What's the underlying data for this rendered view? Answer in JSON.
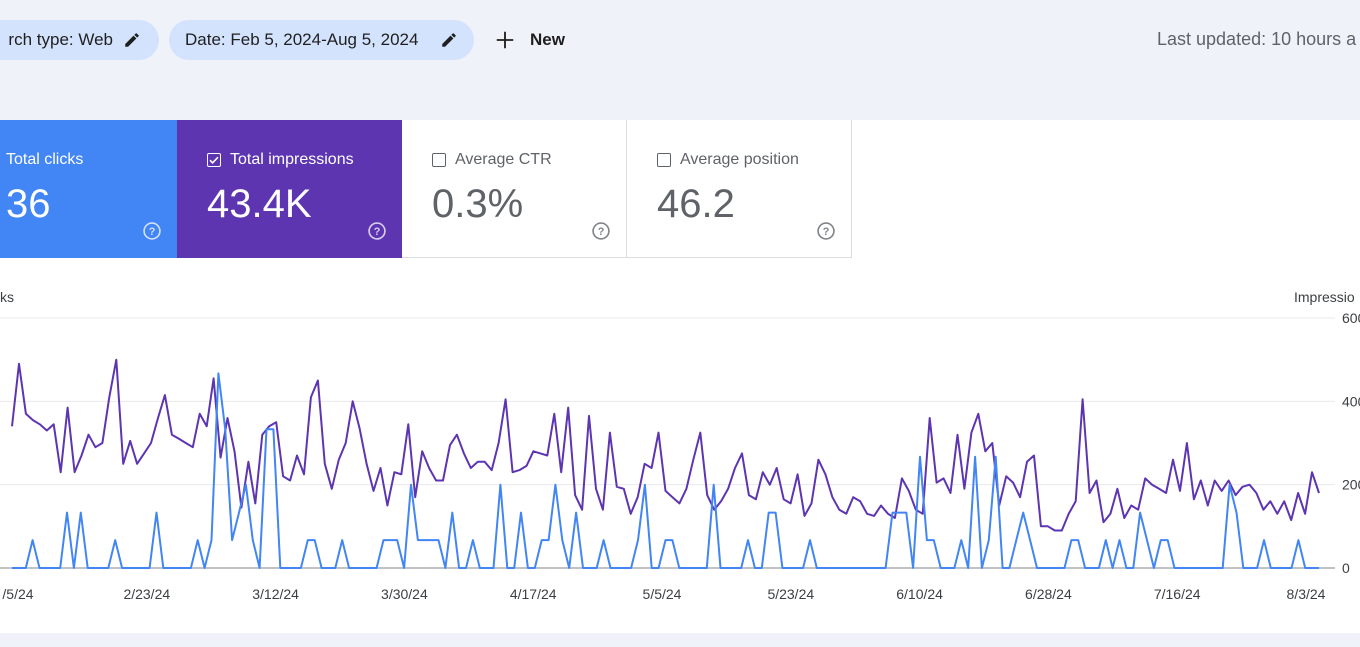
{
  "filters": {
    "search_type": "rch type: Web",
    "date": "Date: Feb 5, 2024-Aug 5, 2024",
    "new_label": "New",
    "last_updated": "Last updated: 10 hours a"
  },
  "metrics": {
    "clicks": {
      "label": "Total clicks",
      "value": "36",
      "selected": true,
      "color": "#4285f4"
    },
    "impressions": {
      "label": "Total impressions",
      "value": "43.4K",
      "selected": true,
      "color": "#5e35b1"
    },
    "ctr": {
      "label": "Average CTR",
      "value": "0.3%",
      "selected": false
    },
    "position": {
      "label": "Average position",
      "value": "46.2",
      "selected": false
    }
  },
  "chart_data": {
    "type": "line",
    "left_axis_title": "ks",
    "right_axis_title": "Impressio",
    "right_ticks": [
      "600",
      "400",
      "200",
      "0"
    ],
    "right_tick_values": [
      600,
      400,
      200,
      0
    ],
    "ylim_right": [
      0,
      600
    ],
    "ylim_left": [
      0,
      6
    ],
    "x_ticks": [
      "/5/24",
      "2/23/24",
      "3/12/24",
      "3/30/24",
      "4/17/24",
      "5/5/24",
      "5/23/24",
      "6/10/24",
      "6/28/24",
      "7/16/24",
      "8/3/24"
    ],
    "series": [
      {
        "name": "Impressions",
        "color": "#5e35b1",
        "axis": "right",
        "values": [
          340,
          490,
          370,
          355,
          345,
          330,
          345,
          230,
          385,
          230,
          270,
          320,
          290,
          300,
          410,
          500,
          250,
          305,
          250,
          275,
          300,
          360,
          415,
          320,
          310,
          300,
          290,
          370,
          340,
          455,
          265,
          360,
          280,
          145,
          255,
          155,
          320,
          340,
          350,
          220,
          210,
          270,
          225,
          410,
          450,
          250,
          190,
          260,
          300,
          400,
          335,
          250,
          185,
          240,
          150,
          230,
          225,
          345,
          170,
          280,
          240,
          210,
          210,
          295,
          320,
          275,
          240,
          255,
          255,
          235,
          300,
          405,
          230,
          235,
          245,
          280,
          275,
          270,
          370,
          230,
          385,
          175,
          140,
          365,
          190,
          140,
          325,
          195,
          190,
          130,
          170,
          250,
          240,
          325,
          185,
          170,
          155,
          190,
          260,
          325,
          175,
          140,
          160,
          190,
          240,
          275,
          175,
          165,
          230,
          200,
          240,
          165,
          155,
          225,
          125,
          155,
          260,
          225,
          170,
          140,
          130,
          170,
          160,
          130,
          125,
          150,
          130,
          120,
          215,
          185,
          140,
          130,
          360,
          205,
          215,
          180,
          320,
          190,
          325,
          370,
          280,
          300,
          150,
          220,
          205,
          170,
          255,
          270,
          100,
          100,
          90,
          90,
          130,
          160,
          405,
          180,
          210,
          110,
          130,
          190,
          120,
          150,
          140,
          215,
          200,
          190,
          180,
          260,
          185,
          300,
          165,
          210,
          150,
          210,
          185,
          210,
          175,
          195,
          200,
          180,
          140,
          160,
          130,
          160,
          115,
          180,
          130,
          230,
          180
        ]
      },
      {
        "name": "Clicks",
        "color": "#4285f4",
        "axis": "left",
        "values": [
          0,
          0,
          0,
          0.67,
          0,
          0,
          0,
          0,
          1.33,
          0,
          1.33,
          0,
          0,
          0,
          0,
          0.67,
          0,
          0,
          0,
          0,
          0,
          1.33,
          0,
          0,
          0,
          0,
          0,
          0.67,
          0,
          0.67,
          4.67,
          3.33,
          0.67,
          1.33,
          2,
          0.67,
          0,
          3.33,
          3.33,
          0,
          0,
          0,
          0,
          0.67,
          0.67,
          0,
          0,
          0,
          0.67,
          0,
          0,
          0,
          0,
          0,
          0.67,
          0.67,
          0.67,
          0,
          2,
          0.67,
          0.67,
          0.67,
          0.67,
          0,
          1.33,
          0,
          0,
          0.67,
          0,
          0,
          0,
          2,
          0,
          0,
          1.33,
          0,
          0,
          0.67,
          0.67,
          2,
          0.67,
          0,
          1.33,
          0,
          0,
          0,
          0.67,
          0,
          0,
          0,
          0,
          0.67,
          2,
          0,
          0,
          0.67,
          0.67,
          0,
          0,
          0,
          0,
          0,
          2,
          0,
          0,
          0,
          0,
          0.67,
          0,
          0,
          1.33,
          1.33,
          0,
          0,
          0,
          0,
          0.67,
          0,
          0,
          0,
          0,
          0,
          0,
          0,
          0,
          0,
          0,
          0,
          1.33,
          1.33,
          1.33,
          0,
          2.67,
          0.67,
          0.67,
          0,
          0,
          0,
          0.67,
          0,
          2.67,
          0,
          0.67,
          2.67,
          0,
          0,
          0.67,
          1.33,
          0.67,
          0,
          0,
          0,
          0,
          0,
          0.67,
          0.67,
          0,
          0,
          0,
          0.67,
          0,
          0.67,
          0,
          0,
          1.33,
          0.67,
          0,
          0.67,
          0.67,
          0,
          0,
          0,
          0,
          0,
          0,
          0,
          0,
          2,
          1.33,
          0,
          0,
          0,
          0.67,
          0,
          0,
          0,
          0,
          0.67,
          0,
          0,
          0
        ]
      }
    ]
  }
}
